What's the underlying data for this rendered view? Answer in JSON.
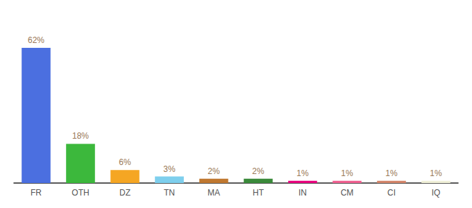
{
  "chart_data": {
    "type": "bar",
    "categories": [
      "FR",
      "OTH",
      "DZ",
      "TN",
      "MA",
      "HT",
      "IN",
      "CM",
      "CI",
      "IQ"
    ],
    "values": [
      62,
      18,
      6,
      3,
      2,
      2,
      1,
      1,
      1,
      1
    ],
    "value_labels": [
      "62%",
      "18%",
      "6%",
      "3%",
      "2%",
      "2%",
      "1%",
      "1%",
      "1%",
      "1%"
    ],
    "colors": [
      "#4b6fe0",
      "#3cb83c",
      "#f5a623",
      "#7ecfed",
      "#c07830",
      "#3a8a3a",
      "#e8007d",
      "#f06090",
      "#d4856a",
      "#f0f0d8"
    ],
    "ylim": [
      0,
      74.4
    ],
    "grid": false,
    "data_labels": true,
    "tick_labels": "x"
  }
}
